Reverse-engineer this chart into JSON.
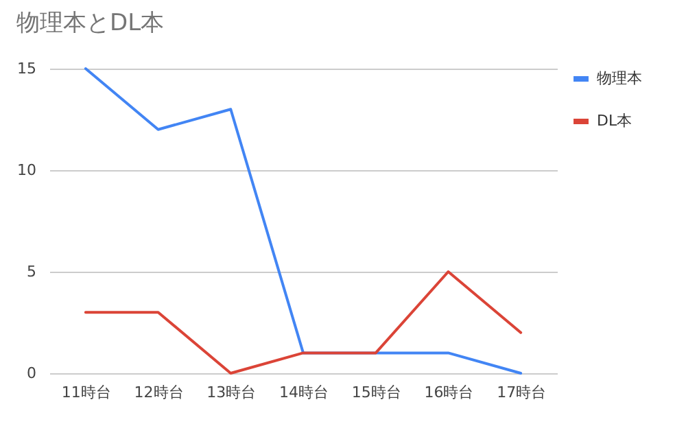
{
  "chart_data": {
    "type": "line",
    "title": "物理本とDL本",
    "categories": [
      "11時台",
      "12時台",
      "13時台",
      "14時台",
      "15時台",
      "16時台",
      "17時台"
    ],
    "series": [
      {
        "name": "物理本",
        "color": "#4285f4",
        "values": [
          15,
          12,
          13,
          1,
          1,
          1,
          0
        ]
      },
      {
        "name": "DL本",
        "color": "#db4437",
        "values": [
          3,
          3,
          0,
          1,
          1,
          5,
          2
        ]
      }
    ],
    "ylim": [
      0,
      15
    ],
    "yticks": [
      0,
      5,
      10,
      15
    ],
    "grid": "y",
    "legend": "top right",
    "marker": "none",
    "line_style": "solid"
  }
}
